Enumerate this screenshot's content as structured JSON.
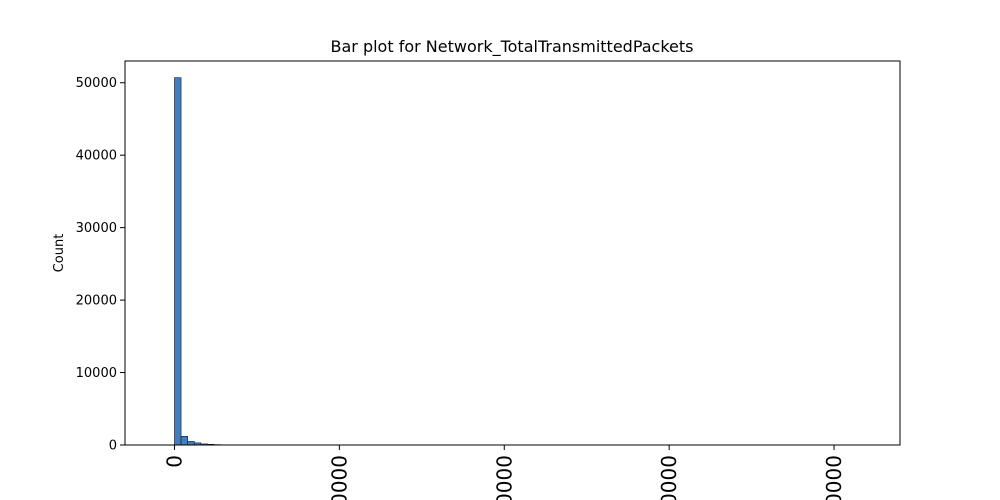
{
  "chart_data": {
    "type": "bar",
    "title": "Bar plot for Network_TotalTransmittedPackets",
    "xlabel": "",
    "ylabel": "Count",
    "ylim": [
      0,
      53000
    ],
    "xlim": [
      -0.3,
      4.4
    ],
    "bin_width": 0.04,
    "bar_color": "#3f7fbf",
    "bar_edge_color": "#1a1a1a",
    "y_ticks": [
      0,
      10000,
      20000,
      30000,
      40000,
      50000
    ],
    "y_tick_labels": [
      "0",
      "10000",
      "20000",
      "30000",
      "40000",
      "50000"
    ],
    "x_ticks": [
      0,
      1,
      2,
      3,
      4
    ],
    "x_tick_labels": [
      "0",
      "0000",
      "0000",
      "0000",
      "0000"
    ],
    "bins": [
      {
        "x": 0.0,
        "count": 50700
      },
      {
        "x": 0.04,
        "count": 1200
      },
      {
        "x": 0.08,
        "count": 500
      },
      {
        "x": 0.12,
        "count": 300
      },
      {
        "x": 0.16,
        "count": 150
      },
      {
        "x": 0.2,
        "count": 100
      },
      {
        "x": 0.24,
        "count": 50
      }
    ],
    "grid": false,
    "legend": "none"
  }
}
